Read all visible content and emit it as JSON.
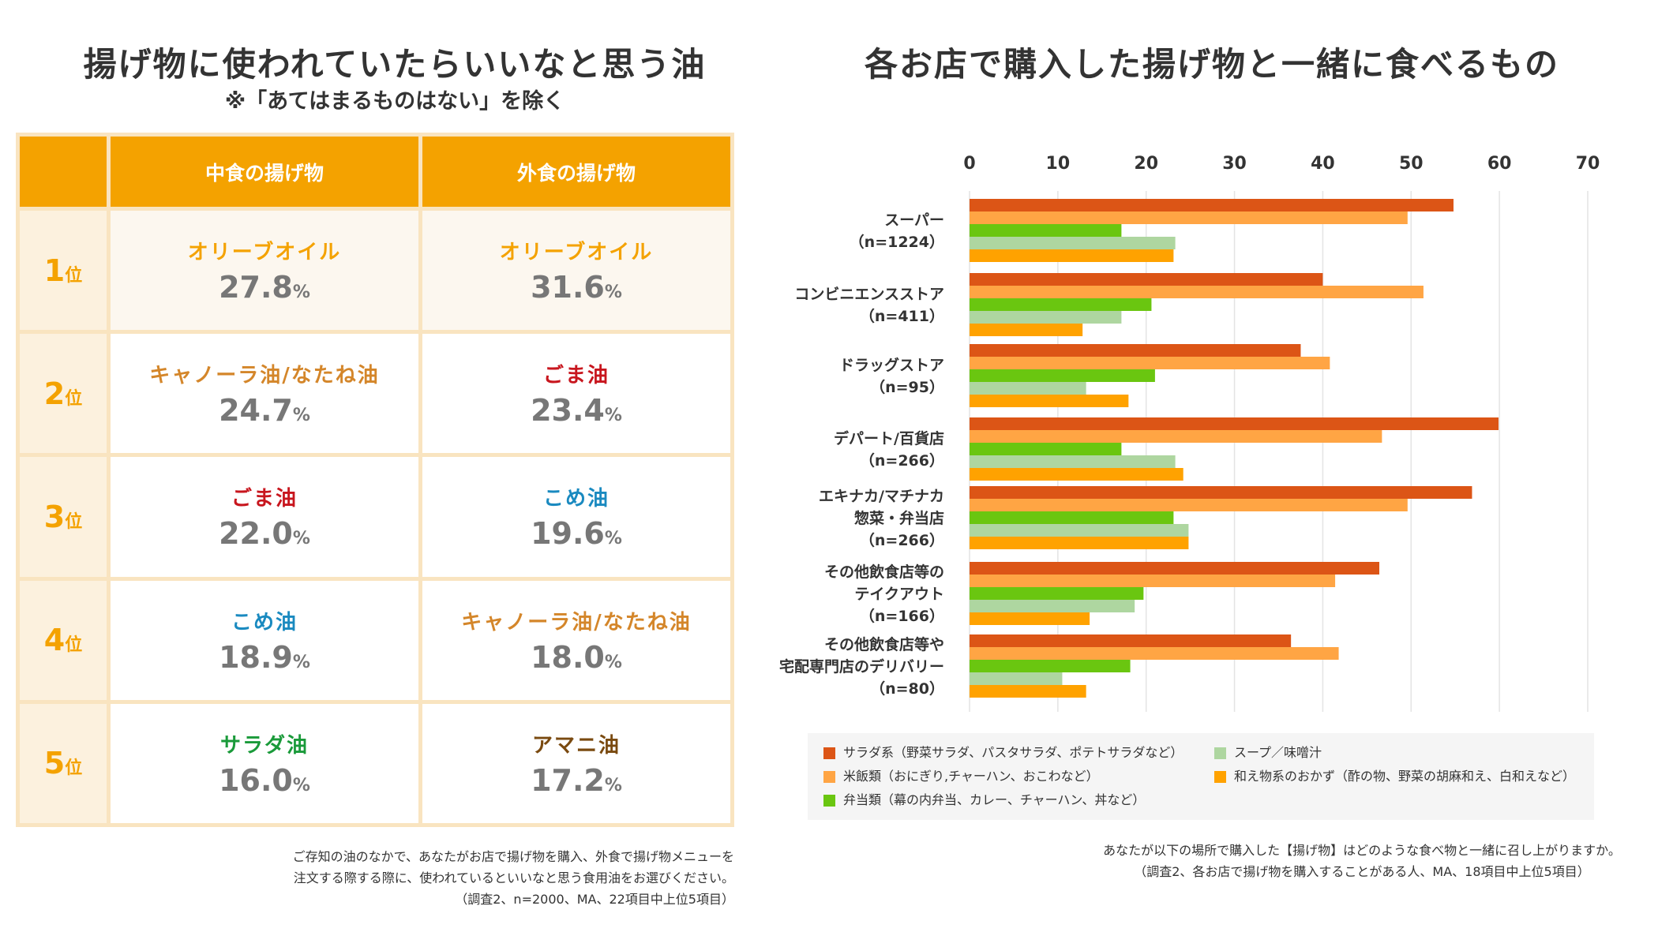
{
  "left": {
    "title": "揚げ物に使われていたらいいなと思う油",
    "subtitle": "※「あてはまるものはない」を除く",
    "headers": [
      "",
      "中食の揚げ物",
      "外食の揚げ物"
    ],
    "rank_suffix": "位",
    "pct_suffix": "%",
    "rows": [
      {
        "rank": "1",
        "naka": {
          "oil": "オリーブオイル",
          "pct": "27.8",
          "color": "#f4a200"
        },
        "soto": {
          "oil": "オリーブオイル",
          "pct": "31.6",
          "color": "#f4a200"
        }
      },
      {
        "rank": "2",
        "naka": {
          "oil": "キャノーラ油/なたね油",
          "pct": "24.7",
          "color": "#d4862a"
        },
        "soto": {
          "oil": "ごま油",
          "pct": "23.4",
          "color": "#c8161e"
        }
      },
      {
        "rank": "3",
        "naka": {
          "oil": "ごま油",
          "pct": "22.0",
          "color": "#c8161e"
        },
        "soto": {
          "oil": "こめ油",
          "pct": "19.6",
          "color": "#1a8ac0"
        }
      },
      {
        "rank": "4",
        "naka": {
          "oil": "こめ油",
          "pct": "18.9",
          "color": "#1a8ac0"
        },
        "soto": {
          "oil": "キャノーラ油/なたね油",
          "pct": "18.0",
          "color": "#d4862a"
        }
      },
      {
        "rank": "5",
        "naka": {
          "oil": "サラダ油",
          "pct": "16.0",
          "color": "#1a9a3a"
        },
        "soto": {
          "oil": "アマニ油",
          "pct": "17.2",
          "color": "#7a4a10"
        }
      }
    ],
    "footnote": [
      "ご存知の油のなかで、あなたがお店で揚げ物を購入、外食で揚げ物メニューを",
      "注文する際する際に、使われているといいなと思う食用油をお選びください。",
      "（調査2、n=2000、MA、22項目中上位5項目）"
    ]
  },
  "right": {
    "title": "各お店で購入した揚げ物と一緒に食べるもの",
    "footnote": [
      "あなたが以下の場所で購入した【揚げ物】はどのような食べ物と一緒に召し上がりますか。",
      "（調査2、各お店で揚げ物を購入することがある人、MA、18項目中上位5項目）"
    ]
  },
  "chart_data": {
    "type": "bar",
    "orientation": "horizontal",
    "xlim": [
      0,
      70
    ],
    "ticks": [
      "0",
      "10",
      "20",
      "30",
      "40",
      "50",
      "60",
      "70"
    ],
    "grid": true,
    "legend_position": "bottom",
    "categories": [
      [
        "スーパー",
        "（n=1224）"
      ],
      [
        "コンビニエンスストア",
        "（n=411）"
      ],
      [
        "ドラッグストア",
        "（n=95）"
      ],
      [
        "デパート/百貨店",
        "（n=266）"
      ],
      [
        "エキナカ/マチナカ",
        "惣菜・弁当店",
        "（n=266）"
      ],
      [
        "その他飲食店等の",
        "テイクアウト",
        "（n=166）"
      ],
      [
        "その他飲食店等や",
        "宅配専門店のデリバリー",
        "（n=80）"
      ]
    ],
    "series": [
      {
        "name": "サラダ系（野菜サラダ、パスタサラダ、ポテトサラダなど）",
        "color": "#dc5516",
        "values": [
          54.8,
          40.0,
          37.5,
          59.9,
          56.9,
          46.4,
          36.4
        ]
      },
      {
        "name": "米飯類（おにぎり,チャーハン、おこわなど）",
        "color": "#ffa544",
        "values": [
          49.6,
          51.4,
          40.8,
          46.7,
          49.6,
          41.4,
          41.8
        ]
      },
      {
        "name": "弁当類（幕の内弁当、カレー、チャーハン、丼など）",
        "color": "#6ac610",
        "values": [
          17.2,
          20.6,
          21.0,
          17.2,
          23.1,
          19.7,
          18.2
        ]
      },
      {
        "name": "スープ／味噌汁",
        "color": "#aed6a0",
        "values": [
          23.3,
          17.2,
          13.2,
          23.3,
          24.8,
          18.7,
          10.5
        ]
      },
      {
        "name": "和え物系のおかず（酢の物、野菜の胡麻和え、白和えなど）",
        "color": "#ffa200",
        "values": [
          23.1,
          12.8,
          18.0,
          24.2,
          24.8,
          13.6,
          13.2
        ]
      }
    ]
  }
}
